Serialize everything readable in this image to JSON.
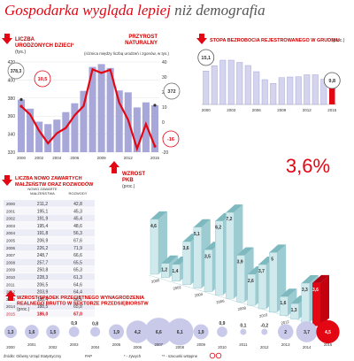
{
  "header": {
    "title_red": "Gospodarka wygląda lepiej",
    "title_rest": " niż demografia"
  },
  "births_panel": {
    "label": "LICZBA\nURODZONYCH DZIECI¹",
    "unit": "(tys.)",
    "label2": "PRZYROST\nNATURALNY",
    "note": "(różnica między liczbą urodzeń i zgonów, w tys.)",
    "callout_first_births": "378,3",
    "callout_first_growth": "10,5",
    "callout_last_births": "372",
    "callout_last_growth": "-16",
    "left_ticks": [
      "420",
      "400",
      "380",
      "360",
      "340",
      "320"
    ],
    "right_ticks": [
      "40",
      "30",
      "20",
      "10",
      "0",
      "-10",
      "-20"
    ],
    "x_ticks": [
      "2000",
      "2002",
      "2004",
      "2006",
      "2009",
      "2012",
      "2015"
    ]
  },
  "unemployment_panel": {
    "label": "STOPA BEZROBOCIA REJESTROWANEGO W GRUDNIU",
    "unit": "(proc.)",
    "first_value": "15,1",
    "last_value": "9,8",
    "x_ticks": [
      "2000",
      "2003",
      "2006",
      "2009",
      "2012",
      "2015"
    ]
  },
  "marriage_table": {
    "label": "LICZBA NOWO ZAWARTYCH\nMAŁŻEŃSTW ORAZ ROZWODÓW",
    "col1": "NOWO ZAWARTE\nMAŁŻEŃSTWA",
    "col2": "ROZWODY",
    "rows": [
      [
        "2000",
        "211,2",
        "42,8"
      ],
      [
        "2001",
        "195,1",
        "45,3"
      ],
      [
        "2002",
        "191,9",
        "45,4"
      ],
      [
        "2003",
        "195,4",
        "48,6"
      ],
      [
        "2004",
        "191,8",
        "56,3"
      ],
      [
        "2005",
        "206,9",
        "67,6"
      ],
      [
        "2006",
        "226,2",
        "71,9"
      ],
      [
        "2007",
        "248,7",
        "66,6"
      ],
      [
        "2008",
        "257,7",
        "65,5"
      ],
      [
        "2009",
        "250,8",
        "65,3"
      ],
      [
        "2010",
        "228,3",
        "61,3"
      ],
      [
        "2011",
        "206,5",
        "64,6"
      ],
      [
        "2012",
        "203,9",
        "64,4"
      ],
      [
        "2013",
        "180,4",
        "66,1"
      ],
      [
        "2014",
        "188,5",
        "65,8"
      ],
      [
        "2015",
        "186,0",
        "67,0"
      ]
    ]
  },
  "gdp_panel": {
    "label": "WZROST\nPKB",
    "unit": "(proc.)",
    "highlight": "3,6%"
  },
  "wage_panel": {
    "label": "WZROST/SPADEK PRZECIĘTNEGO WYNAGRODZENIA\nREALNEGO BRUTTO W SEKTORZE PRZEDSIĘBIORSTW",
    "unit": "(proc.)"
  },
  "footer": {
    "source": "Źródło: Główny Urząd Statystyczny",
    "note1": "* - zywych",
    "note2": "** - szacunki wstępne"
  },
  "colors": {
    "accent_red": "#e30613",
    "bar_purple": "#a7a7d9",
    "bar_purple_light": "#d4d4ee",
    "teal_front": "#cfe9ec",
    "teal_top": "#7fb9c0",
    "teal_side": "#9ccbd1",
    "bubble": "#c9c9ea",
    "grid": "#cccccc"
  },
  "chart_data": [
    {
      "type": "bar",
      "title": "LICZBA URODZONYCH DZIECI",
      "ylabel": "(tys.)",
      "categories": [
        "2000",
        "2001",
        "2002",
        "2003",
        "2004",
        "2005",
        "2006",
        "2007",
        "2008",
        "2009",
        "2010",
        "2011",
        "2012",
        "2013",
        "2014",
        "2015"
      ],
      "series": [
        {
          "name": "LICZBA URODZONYCH DZIECI",
          "values": [
            378.3,
            368.2,
            353.8,
            351.1,
            356.1,
            364.4,
            374.2,
            387.9,
            414.5,
            417.6,
            413.3,
            388.4,
            386.3,
            369.6,
            375.2,
            372.0
          ]
        },
        {
          "name": "PRZYROST NATURALNY",
          "values": [
            10.5,
            5.0,
            -5.7,
            -14.1,
            -7.4,
            -3.9,
            4.6,
            10.7,
            35.1,
            32.7,
            34.8,
            12.9,
            1.5,
            -17.7,
            -1.3,
            -16.0
          ]
        }
      ],
      "ylim": [
        320,
        420
      ],
      "y2lim": [
        -20,
        40
      ],
      "grid": true
    },
    {
      "type": "bar",
      "title": "STOPA BEZROBOCIA REJESTROWANEGO W GRUDNIU",
      "ylabel": "(proc.)",
      "categories": [
        "2000",
        "2001",
        "2002",
        "2003",
        "2004",
        "2005",
        "2006",
        "2007",
        "2008",
        "2009",
        "2010",
        "2011",
        "2012",
        "2013",
        "2014",
        "2015"
      ],
      "values": [
        15.1,
        17.5,
        20.0,
        20.0,
        19.0,
        17.6,
        14.8,
        11.2,
        9.5,
        12.1,
        12.4,
        12.5,
        13.4,
        13.4,
        11.4,
        9.8
      ],
      "grid": false
    },
    {
      "type": "bar",
      "title": "WZROST PKB",
      "ylabel": "(proc.)",
      "categories": [
        "2000",
        "2001",
        "2002",
        "2003",
        "2004",
        "2005",
        "2006",
        "2007",
        "2008",
        "2009",
        "2010",
        "2011",
        "2012",
        "2013",
        "2014",
        "2015"
      ],
      "values": [
        4.6,
        1.2,
        1.4,
        3.6,
        5.1,
        3.5,
        6.2,
        7.2,
        3.9,
        2.6,
        3.7,
        5.0,
        1.6,
        1.3,
        3.3,
        3.6
      ],
      "labels": [
        "4,6",
        "1,2",
        "1,4",
        "3,6",
        "5,1",
        "3,5",
        "6,2",
        "7,2",
        "3,9",
        "2,6",
        "3,7",
        "5",
        "1,6",
        "1,3",
        "3,3",
        "3,6"
      ],
      "grid": false
    },
    {
      "type": "scatter",
      "title": "WZROST/SPADEK PRZECIĘTNEGO WYNAGRODZENIA REALNEGO BRUTTO W SEKTORZE PRZEDSIĘBIORSTW",
      "ylabel": "(proc.)",
      "x": [
        "2000",
        "2001",
        "2002",
        "2003",
        "2004",
        "2005",
        "2006",
        "2007",
        "2008",
        "2009",
        "2010",
        "2011",
        "2012",
        "2013",
        "2014",
        "2015"
      ],
      "values": [
        1.3,
        1.6,
        1.5,
        0.9,
        0.8,
        1.9,
        4.2,
        6.6,
        6.1,
        1.9,
        0.9,
        0.1,
        -0.2,
        2.0,
        3.7,
        4.5
      ],
      "labels": [
        "1,3",
        "1,6",
        "1,5",
        "0,9",
        "0,8",
        "1,9",
        "4,2",
        "6,6",
        "6,1",
        "1,9",
        "0,9",
        "0,1",
        "-0,2",
        "2",
        "3,7",
        "4,5"
      ],
      "x_labels": [
        "2000",
        "2001",
        "2002",
        "2003",
        "2004",
        "2005",
        "2006",
        "2007",
        "2008",
        "2009",
        "2010",
        "2011",
        "2012",
        "2013",
        "2014",
        "2015"
      ]
    }
  ]
}
